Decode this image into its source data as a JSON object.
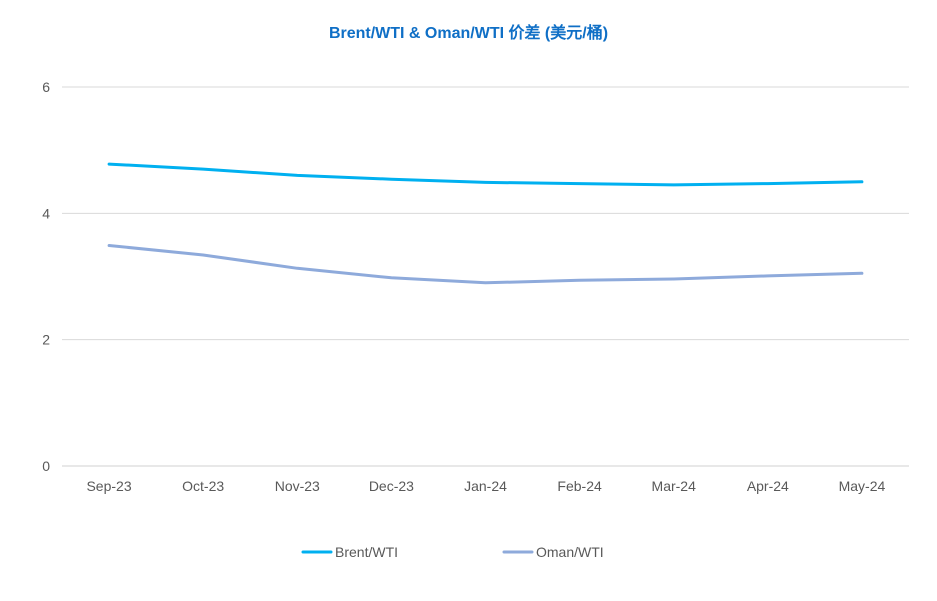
{
  "chart_data": {
    "type": "line",
    "title": "Brent/WTI & Oman/WTI 价差 (美元/桶)",
    "xlabel": "",
    "ylabel": "",
    "categories": [
      "Sep-23",
      "Oct-23",
      "Nov-23",
      "Dec-23",
      "Jan-24",
      "Feb-24",
      "Mar-24",
      "Apr-24",
      "May-24"
    ],
    "ylim": [
      0,
      6
    ],
    "yticks": [
      0,
      2,
      4,
      6
    ],
    "grid": true,
    "legend_position": "bottom",
    "series": [
      {
        "name": "Brent/WTI",
        "color": "#00b0f0",
        "values": [
          4.78,
          4.7,
          4.6,
          4.54,
          4.49,
          4.47,
          4.45,
          4.47,
          4.5
        ]
      },
      {
        "name": "Oman/WTI",
        "color": "#8eaadb",
        "values": [
          3.49,
          3.34,
          3.13,
          2.98,
          2.9,
          2.94,
          2.96,
          3.01,
          3.05
        ]
      }
    ]
  }
}
